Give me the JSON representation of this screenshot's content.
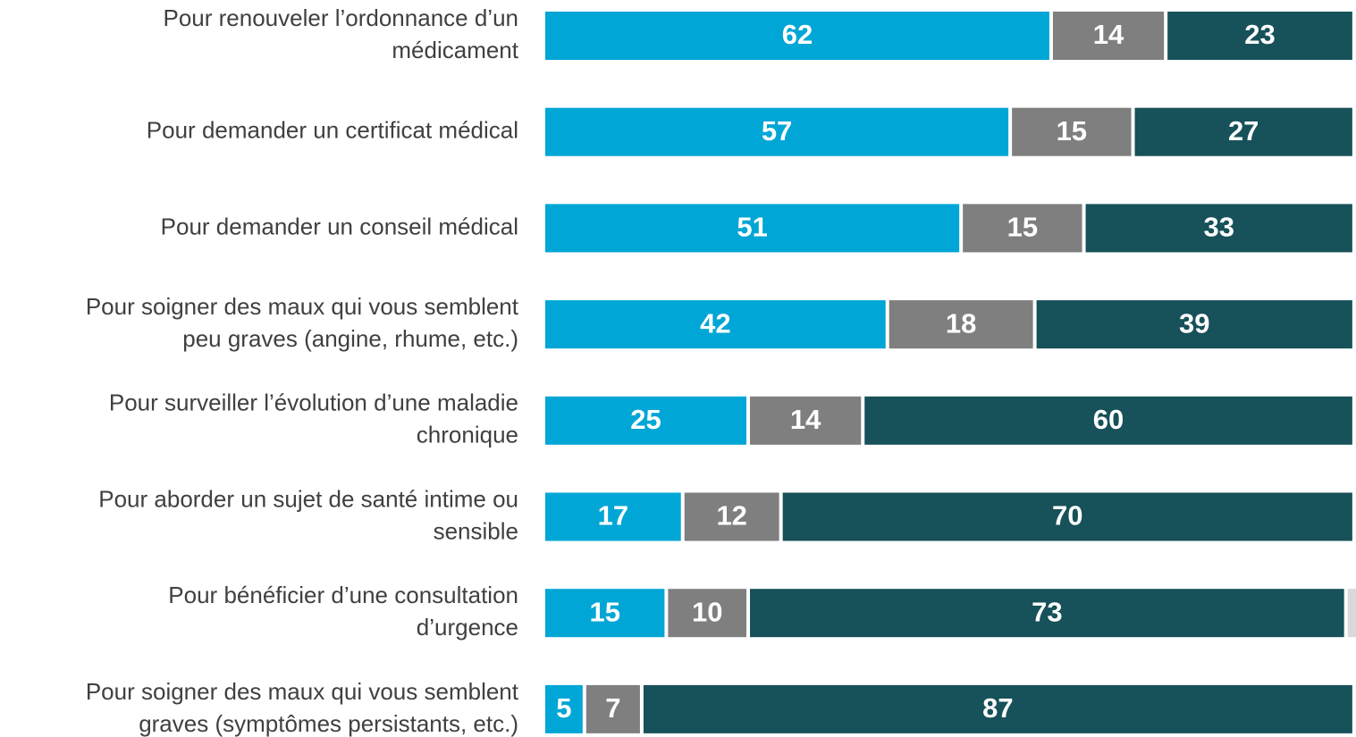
{
  "chart_data": {
    "type": "stacked-bar-horizontal",
    "categories": [
      [
        "Pour renouveler l’ordonnance d’un",
        "médicament"
      ],
      [
        "Pour demander un certificat médical"
      ],
      [
        "Pour demander un conseil médical"
      ],
      [
        "Pour soigner des maux qui vous semblent",
        "peu graves (angine, rhume, etc.)"
      ],
      [
        "Pour surveiller l’évolution d’une maladie",
        "chronique"
      ],
      [
        "Pour aborder un sujet de santé intime ou",
        "sensible"
      ],
      [
        "Pour bénéficier d’une consultation",
        "d’urgence"
      ],
      [
        "Pour soigner des maux qui vous semblent",
        "graves (symptômes persistants, etc.)"
      ]
    ],
    "series": [
      {
        "color": "#00a6d6",
        "values": [
          62,
          57,
          51,
          42,
          25,
          17,
          15,
          5
        ]
      },
      {
        "color": "#7f7f7f",
        "values": [
          14,
          15,
          15,
          18,
          14,
          12,
          10,
          7
        ]
      },
      {
        "color": "#175159",
        "values": [
          23,
          27,
          33,
          39,
          60,
          70,
          73,
          87
        ]
      },
      {
        "color": "#d9d9d9",
        "values": [
          1,
          1,
          1,
          1,
          1,
          1,
          2,
          1
        ]
      }
    ]
  }
}
